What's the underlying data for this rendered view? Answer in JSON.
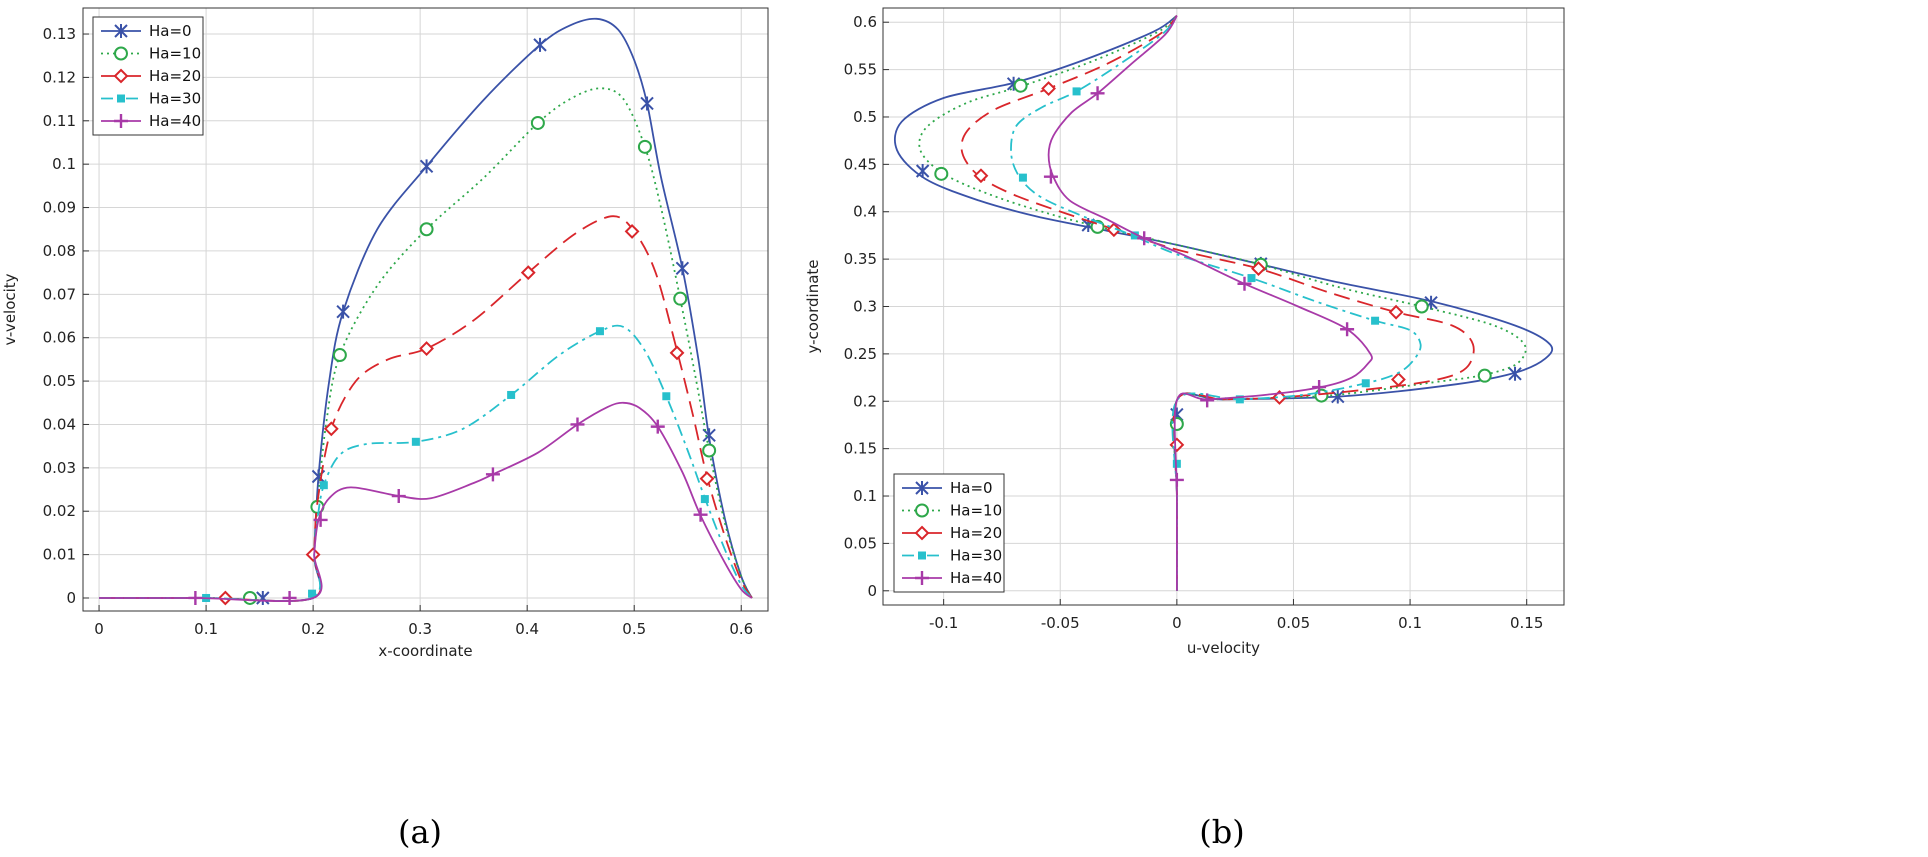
{
  "series_styles": [
    {
      "name": "Ha=0",
      "color": "#3a52a8",
      "dash": "",
      "marker": "asterisk"
    },
    {
      "name": "Ha=10",
      "color": "#2ea84a",
      "dash": "2,4",
      "marker": "circle"
    },
    {
      "name": "Ha=20",
      "color": "#d9262b",
      "dash": "16,8",
      "marker": "diamond"
    },
    {
      "name": "Ha=30",
      "color": "#27c0cc",
      "dash": "12,5,3,5",
      "marker": "square"
    },
    {
      "name": "Ha=40",
      "color": "#a83aa8",
      "dash": "",
      "marker": "plus"
    }
  ],
  "chart_data": [
    {
      "type": "line",
      "caption": "(a)",
      "xlabel": "x-coordinate",
      "ylabel": "v-velocity",
      "xlim": [
        -0.015,
        0.625
      ],
      "ylim": [
        -0.003,
        0.136
      ],
      "grid": true,
      "legend": "top-left",
      "xticks": [
        0,
        0.1,
        0.2,
        0.3,
        0.4,
        0.5,
        0.6
      ],
      "xtick_labels": [
        "0",
        "0.1",
        "0.2",
        "0.3",
        "0.4",
        "0.5",
        "0.6"
      ],
      "yticks": [
        0,
        0.01,
        0.02,
        0.03,
        0.04,
        0.05,
        0.06,
        0.07,
        0.08,
        0.09,
        0.1,
        0.11,
        0.12,
        0.13
      ],
      "ytick_labels": [
        "0",
        "0.01",
        "0.02",
        "0.03",
        "0.04",
        "0.05",
        "0.06",
        "0.07",
        "0.08",
        "0.09",
        "0.1",
        "0.11",
        "0.12",
        "0.13"
      ],
      "series": [
        {
          "name": "Ha=0",
          "x": [
            0,
            0.1,
            0.2,
            0.201,
            0.205,
            0.215,
            0.228,
            0.26,
            0.306,
            0.36,
            0.412,
            0.44,
            0.465,
            0.485,
            0.5,
            0.512,
            0.525,
            0.545,
            0.56,
            0.57,
            0.585,
            0.6,
            0.61
          ],
          "y": [
            0,
            0,
            0,
            0.01,
            0.028,
            0.05,
            0.066,
            0.085,
            0.0995,
            0.115,
            0.1275,
            0.132,
            0.1335,
            0.131,
            0.124,
            0.114,
            0.097,
            0.076,
            0.055,
            0.037,
            0.018,
            0.005,
            0
          ],
          "markers_x": [
            0.153,
            0.205,
            0.228,
            0.306,
            0.412,
            0.512,
            0.545,
            0.57
          ],
          "markers_y": [
            0,
            0.028,
            0.066,
            0.0995,
            0.1275,
            0.114,
            0.076,
            0.0375
          ]
        },
        {
          "name": "Ha=10",
          "x": [
            0,
            0.1,
            0.2,
            0.201,
            0.204,
            0.212,
            0.225,
            0.26,
            0.306,
            0.36,
            0.41,
            0.44,
            0.468,
            0.49,
            0.51,
            0.525,
            0.543,
            0.558,
            0.57,
            0.585,
            0.6,
            0.61
          ],
          "y": [
            0,
            0,
            0,
            0.01,
            0.021,
            0.04,
            0.056,
            0.072,
            0.085,
            0.097,
            0.1095,
            0.115,
            0.1175,
            0.115,
            0.104,
            0.09,
            0.069,
            0.05,
            0.034,
            0.017,
            0.005,
            0
          ],
          "markers_x": [
            0.141,
            0.204,
            0.225,
            0.306,
            0.41,
            0.51,
            0.543,
            0.57
          ],
          "markers_y": [
            0,
            0.021,
            0.056,
            0.085,
            0.1095,
            0.104,
            0.069,
            0.034
          ]
        },
        {
          "name": "Ha=20",
          "x": [
            0,
            0.1,
            0.2,
            0.201,
            0.204,
            0.217,
            0.24,
            0.27,
            0.306,
            0.35,
            0.401,
            0.445,
            0.48,
            0.5,
            0.52,
            0.54,
            0.555,
            0.568,
            0.585,
            0.6,
            0.61
          ],
          "y": [
            0,
            0,
            0,
            0.01,
            0.022,
            0.039,
            0.05,
            0.055,
            0.0575,
            0.064,
            0.075,
            0.084,
            0.088,
            0.0845,
            0.075,
            0.057,
            0.042,
            0.028,
            0.014,
            0.004,
            0
          ],
          "markers_x": [
            0.118,
            0.2,
            0.217,
            0.306,
            0.401,
            0.498,
            0.54,
            0.568
          ],
          "markers_y": [
            0,
            0.01,
            0.039,
            0.0575,
            0.075,
            0.0845,
            0.0565,
            0.0275
          ]
        },
        {
          "name": "Ha=30",
          "x": [
            0,
            0.1,
            0.199,
            0.201,
            0.204,
            0.21,
            0.225,
            0.25,
            0.296,
            0.34,
            0.385,
            0.43,
            0.468,
            0.49,
            0.51,
            0.53,
            0.55,
            0.566,
            0.585,
            0.6,
            0.61
          ],
          "y": [
            0,
            0,
            0,
            0.01,
            0.018,
            0.026,
            0.033,
            0.0355,
            0.036,
            0.039,
            0.0468,
            0.056,
            0.0615,
            0.0625,
            0.057,
            0.0465,
            0.034,
            0.023,
            0.011,
            0.003,
            0
          ],
          "markers_x": [
            0.1,
            0.199,
            0.21,
            0.296,
            0.385,
            0.468,
            0.53,
            0.566
          ],
          "markers_y": [
            0,
            0.001,
            0.026,
            0.036,
            0.0468,
            0.0615,
            0.0465,
            0.0228
          ]
        },
        {
          "name": "Ha=40",
          "x": [
            0,
            0.09,
            0.2,
            0.201,
            0.205,
            0.215,
            0.235,
            0.28,
            0.31,
            0.35,
            0.368,
            0.41,
            0.447,
            0.475,
            0.49,
            0.505,
            0.522,
            0.545,
            0.562,
            0.585,
            0.6,
            0.61
          ],
          "y": [
            0,
            0,
            0,
            0.01,
            0.018,
            0.023,
            0.0255,
            0.0235,
            0.023,
            0.0265,
            0.0285,
            0.0335,
            0.04,
            0.044,
            0.045,
            0.0438,
            0.0395,
            0.029,
            0.019,
            0.008,
            0.002,
            0
          ],
          "markers_x": [
            0.09,
            0.178,
            0.207,
            0.28,
            0.368,
            0.447,
            0.522,
            0.562
          ],
          "markers_y": [
            0,
            0,
            0.018,
            0.0235,
            0.0285,
            0.04,
            0.0395,
            0.0192
          ]
        }
      ]
    },
    {
      "type": "line",
      "caption": "(b)",
      "xlabel": "u-velocity",
      "ylabel": "y-coordinate",
      "xlim": [
        -0.126,
        0.166
      ],
      "ylim": [
        -0.015,
        0.615
      ],
      "grid": true,
      "legend": "bottom-left",
      "xticks": [
        -0.1,
        -0.05,
        0,
        0.05,
        0.1,
        0.15
      ],
      "xtick_labels": [
        "-0.1",
        "-0.05",
        "0",
        "0.05",
        "0.1",
        "0.15"
      ],
      "yticks": [
        0,
        0.05,
        0.1,
        0.15,
        0.2,
        0.25,
        0.3,
        0.35,
        0.4,
        0.45,
        0.5,
        0.55,
        0.6
      ],
      "ytick_labels": [
        "0",
        "0.05",
        "0.1",
        "0.15",
        "0.2",
        "0.25",
        "0.3",
        "0.35",
        "0.4",
        "0.45",
        "0.5",
        "0.55",
        "0.6"
      ],
      "series": [
        {
          "name": "Ha=0",
          "x": [
            0,
            0,
            0,
            0.02,
            0.07,
            0.12,
            0.145,
            0.158,
            0.16,
            0.145,
            0.11,
            0.07,
            0.035,
            0,
            -0.03,
            -0.06,
            -0.085,
            -0.108,
            -0.12,
            -0.118,
            -0.1,
            -0.07,
            -0.04,
            -0.01,
            0
          ],
          "y": [
            0,
            0.1,
            0.201,
            0.202,
            0.205,
            0.218,
            0.23,
            0.245,
            0.26,
            0.28,
            0.305,
            0.325,
            0.345,
            0.365,
            0.38,
            0.395,
            0.412,
            0.435,
            0.465,
            0.495,
            0.52,
            0.536,
            0.56,
            0.59,
            0.607
          ],
          "markers_x": [
            0,
            0.069,
            0.145,
            0.109,
            0.036,
            -0.038,
            -0.109,
            -0.07
          ],
          "markers_y": [
            0.186,
            0.205,
            0.229,
            0.304,
            0.345,
            0.386,
            0.443,
            0.535
          ]
        },
        {
          "name": "Ha=10",
          "x": [
            0,
            0,
            0,
            0.02,
            0.065,
            0.11,
            0.132,
            0.146,
            0.149,
            0.136,
            0.105,
            0.07,
            0.035,
            0,
            -0.03,
            -0.055,
            -0.08,
            -0.1,
            -0.11,
            -0.107,
            -0.09,
            -0.066,
            -0.035,
            -0.008,
            0
          ],
          "y": [
            0,
            0.1,
            0.201,
            0.202,
            0.206,
            0.22,
            0.228,
            0.24,
            0.26,
            0.28,
            0.3,
            0.32,
            0.345,
            0.365,
            0.382,
            0.398,
            0.418,
            0.44,
            0.465,
            0.49,
            0.515,
            0.533,
            0.56,
            0.59,
            0.607
          ],
          "markers_x": [
            0,
            0.062,
            0.132,
            0.105,
            0.036,
            -0.034,
            -0.101,
            -0.067
          ],
          "markers_y": [
            0.176,
            0.206,
            0.227,
            0.3,
            0.344,
            0.384,
            0.44,
            0.533
          ]
        },
        {
          "name": "Ha=20",
          "x": [
            0,
            0,
            0,
            0.02,
            0.044,
            0.08,
            0.11,
            0.124,
            0.127,
            0.118,
            0.094,
            0.065,
            0.035,
            0,
            -0.025,
            -0.045,
            -0.07,
            -0.085,
            -0.092,
            -0.09,
            -0.078,
            -0.055,
            -0.03,
            -0.007,
            0
          ],
          "y": [
            0,
            0.1,
            0.201,
            0.202,
            0.204,
            0.212,
            0.222,
            0.235,
            0.26,
            0.28,
            0.294,
            0.315,
            0.34,
            0.36,
            0.38,
            0.396,
            0.418,
            0.438,
            0.462,
            0.485,
            0.508,
            0.53,
            0.556,
            0.588,
            0.607
          ],
          "markers_x": [
            0,
            0.044,
            0.095,
            0.094,
            0.035,
            -0.027,
            -0.084,
            -0.055
          ],
          "markers_y": [
            0.154,
            0.204,
            0.223,
            0.294,
            0.34,
            0.381,
            0.438,
            0.53
          ]
        },
        {
          "name": "Ha=30",
          "x": [
            0,
            0,
            0,
            0.027,
            0.055,
            0.081,
            0.095,
            0.102,
            0.1045,
            0.1,
            0.085,
            0.06,
            0.032,
            0,
            -0.02,
            -0.04,
            -0.058,
            -0.067,
            -0.071,
            -0.069,
            -0.058,
            -0.043,
            -0.025,
            -0.006,
            0
          ],
          "y": [
            0,
            0.1,
            0.201,
            0.202,
            0.207,
            0.219,
            0.23,
            0.245,
            0.26,
            0.275,
            0.285,
            0.305,
            0.33,
            0.355,
            0.376,
            0.395,
            0.415,
            0.435,
            0.46,
            0.49,
            0.51,
            0.527,
            0.555,
            0.588,
            0.607
          ],
          "markers_x": [
            0,
            0.027,
            0.081,
            0.085,
            0.032,
            -0.018,
            -0.066,
            -0.043
          ],
          "markers_y": [
            0.134,
            0.202,
            0.219,
            0.285,
            0.33,
            0.375,
            0.436,
            0.527
          ]
        },
        {
          "name": "Ha=40",
          "x": [
            0,
            0,
            0,
            0.013,
            0.039,
            0.062,
            0.075,
            0.082,
            0.083,
            0.073,
            0.052,
            0.029,
            0.005,
            -0.014,
            -0.03,
            -0.046,
            -0.053,
            -0.055,
            -0.053,
            -0.045,
            -0.034,
            -0.02,
            -0.005,
            0
          ],
          "y": [
            0,
            0.1,
            0.201,
            0.202,
            0.207,
            0.215,
            0.225,
            0.24,
            0.25,
            0.276,
            0.3,
            0.324,
            0.352,
            0.372,
            0.392,
            0.412,
            0.437,
            0.46,
            0.48,
            0.505,
            0.525,
            0.555,
            0.587,
            0.607
          ],
          "markers_x": [
            0,
            0.013,
            0.061,
            0.073,
            0.029,
            -0.014,
            -0.054,
            -0.034
          ],
          "markers_y": [
            0.117,
            0.201,
            0.215,
            0.276,
            0.324,
            0.372,
            0.437,
            0.525
          ]
        }
      ]
    }
  ]
}
